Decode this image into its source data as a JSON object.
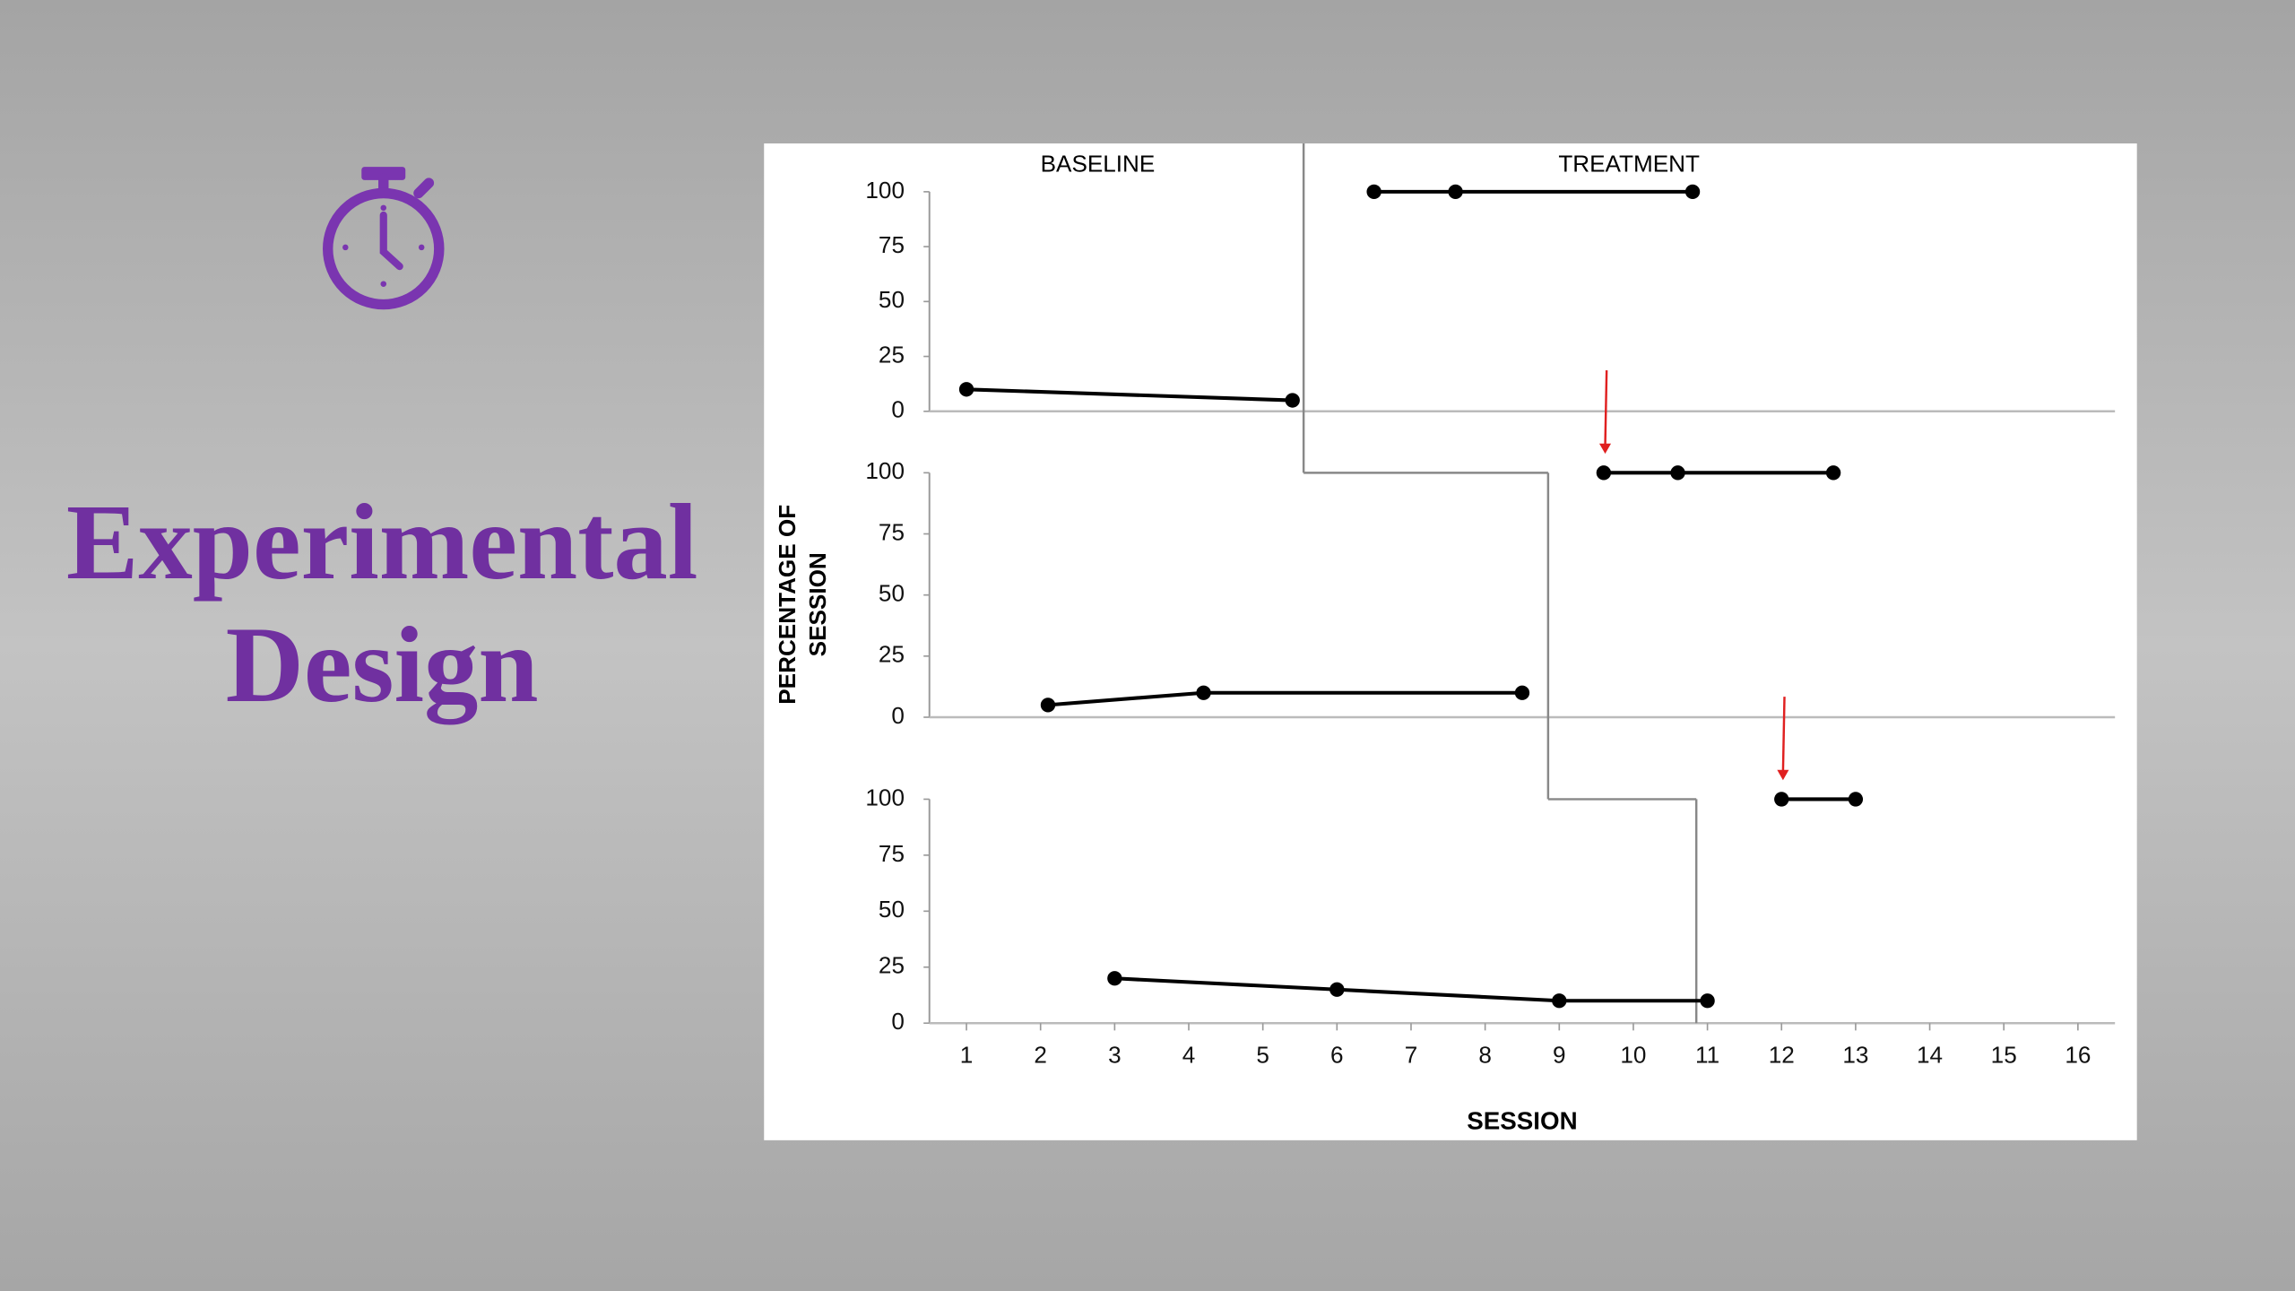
{
  "title_lines": [
    "Experimental",
    "Design"
  ],
  "phase_labels": [
    "BASELINE",
    "TREATMENT"
  ],
  "ylabel_lines": [
    "PERCENTAGE OF",
    "SESSION"
  ],
  "chart_data": [
    {
      "type": "line",
      "xlim": [
        0.5,
        16.5
      ],
      "ylim": [
        0,
        100
      ],
      "yticks": [
        0,
        25,
        50,
        75,
        100
      ],
      "phase_change_x": 5.55,
      "series": [
        {
          "color": "#000000",
          "x": [
            1.0,
            5.4
          ],
          "values": [
            10,
            5
          ]
        },
        {
          "color": "#000000",
          "x": [
            6.5,
            7.6,
            10.8
          ],
          "values": [
            100,
            100,
            100
          ]
        }
      ]
    },
    {
      "type": "line",
      "xlim": [
        0.5,
        16.5
      ],
      "ylim": [
        0,
        100
      ],
      "yticks": [
        0,
        25,
        50,
        75,
        100
      ],
      "phase_change_x": 8.85,
      "series": [
        {
          "color": "#000000",
          "x": [
            2.1,
            4.2,
            8.5
          ],
          "values": [
            5,
            10,
            10
          ]
        },
        {
          "color": "#000000",
          "x": [
            9.6,
            10.6,
            12.7
          ],
          "values": [
            100,
            100,
            100
          ]
        }
      ]
    },
    {
      "type": "line",
      "xlim": [
        0.5,
        16.5
      ],
      "ylim": [
        0,
        100
      ],
      "yticks": [
        0,
        25,
        50,
        75,
        100
      ],
      "phase_change_x": 10.85,
      "xlabel": "SESSION",
      "xticks": [
        1,
        2,
        3,
        4,
        5,
        6,
        7,
        8,
        9,
        10,
        11,
        12,
        13,
        14,
        15,
        16
      ],
      "series": [
        {
          "color": "#000000",
          "x": [
            3.0,
            6.0,
            9.0,
            11.0
          ],
          "values": [
            20,
            15,
            10,
            10
          ]
        },
        {
          "color": "#000000",
          "x": [
            12.0,
            13.0
          ],
          "values": [
            100,
            100
          ]
        }
      ]
    }
  ]
}
